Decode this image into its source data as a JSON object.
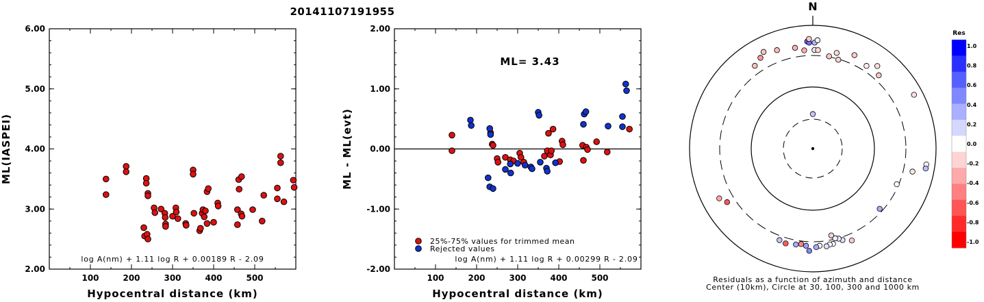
{
  "title": "20141107191955",
  "chart_data": [
    {
      "type": "scatter",
      "xlabel": "Hypocentral distance (km)",
      "ylabel": "ML(IASPEI)",
      "xlim": [
        0,
        600
      ],
      "ylim": [
        2.0,
        6.0
      ],
      "xticks": [
        "100",
        "200",
        "300",
        "400",
        "500"
      ],
      "yticks": [
        "2.00",
        "3.00",
        "4.00",
        "5.00",
        "6.00"
      ],
      "formula": "log A(nm) + 1.11 log R + 0.00189 R - 2.09",
      "series": [
        {
          "color": "#dd1111",
          "points": [
            [
              138,
              3.5
            ],
            [
              138,
              3.24
            ],
            [
              187,
              3.71
            ],
            [
              187,
              3.62
            ],
            [
              230,
              2.69
            ],
            [
              232,
              2.55
            ],
            [
              236,
              3.51
            ],
            [
              236,
              3.43
            ],
            [
              238,
              2.58
            ],
            [
              240,
              3.26
            ],
            [
              240,
              3.22
            ],
            [
              240,
              2.5
            ],
            [
              255,
              3.02
            ],
            [
              257,
              2.94
            ],
            [
              272,
              3.0
            ],
            [
              281,
              2.93
            ],
            [
              282,
              2.86
            ],
            [
              283,
              2.75
            ],
            [
              283,
              2.71
            ],
            [
              300,
              2.88
            ],
            [
              308,
              3.02
            ],
            [
              309,
              2.95
            ],
            [
              313,
              2.84
            ],
            [
              332,
              2.76
            ],
            [
              333,
              2.73
            ],
            [
              350,
              3.65
            ],
            [
              350,
              3.58
            ],
            [
              352,
              2.93
            ],
            [
              366,
              2.64
            ],
            [
              368,
              2.68
            ],
            [
              372,
              2.93
            ],
            [
              374,
              2.99
            ],
            [
              377,
              2.87
            ],
            [
              380,
              2.97
            ],
            [
              384,
              3.29
            ],
            [
              384,
              2.76
            ],
            [
              387,
              3.34
            ],
            [
              400,
              2.78
            ],
            [
              410,
              3.1
            ],
            [
              411,
              3.05
            ],
            [
              458,
              2.99
            ],
            [
              458,
              2.74
            ],
            [
              461,
              3.49
            ],
            [
              462,
              3.33
            ],
            [
              468,
              3.54
            ],
            [
              467,
              2.92
            ],
            [
              469,
              2.88
            ],
            [
              495,
              2.99
            ],
            [
              518,
              2.8
            ],
            [
              522,
              3.23
            ],
            [
              555,
              3.35
            ],
            [
              555,
              3.17
            ],
            [
              563,
              3.88
            ],
            [
              563,
              3.77
            ],
            [
              571,
              3.12
            ],
            [
              594,
              3.48
            ],
            [
              596,
              3.36
            ]
          ]
        }
      ]
    },
    {
      "type": "scatter",
      "xlabel": "Hypocentral distance (km)",
      "ylabel": "ML - ML(evt)",
      "xlim": [
        0,
        600
      ],
      "ylim": [
        -2.0,
        2.0
      ],
      "xticks": [
        "100",
        "200",
        "300",
        "400",
        "500"
      ],
      "yticks": [
        "-2.00",
        "-1.00",
        "0.00",
        "1.00",
        "2.00"
      ],
      "annotation": "ML= 3.43",
      "formula": "log A(nm) + 1.11 log R + 0.00299 R - 2.09",
      "reference_line": 0,
      "series": [
        {
          "name": "25%-75% values for trimmed mean",
          "color": "#dd1111",
          "points": [
            [
              140,
              0.23
            ],
            [
              140,
              -0.03
            ],
            [
              234,
              0.27
            ],
            [
              238,
              0.08
            ],
            [
              240,
              0.06
            ],
            [
              250,
              -0.16
            ],
            [
              252,
              -0.22
            ],
            [
              270,
              -0.14
            ],
            [
              282,
              -0.18
            ],
            [
              290,
              -0.2
            ],
            [
              305,
              -0.07
            ],
            [
              308,
              -0.14
            ],
            [
              315,
              -0.22
            ],
            [
              365,
              -0.12
            ],
            [
              372,
              -0.03
            ],
            [
              375,
              0.26
            ],
            [
              380,
              -0.1
            ],
            [
              382,
              -0.03
            ],
            [
              386,
              0.33
            ],
            [
              402,
              -0.21
            ],
            [
              408,
              0.13
            ],
            [
              410,
              0.07
            ],
            [
              458,
              0.06
            ],
            [
              460,
              -0.19
            ],
            [
              467,
              0.03
            ],
            [
              470,
              -0.01
            ],
            [
              492,
              0.12
            ],
            [
              518,
              -0.05
            ],
            [
              572,
              0.33
            ]
          ]
        },
        {
          "name": "Rejected values",
          "color": "#1133cc",
          "points": [
            [
              185,
              0.48
            ],
            [
              187,
              0.39
            ],
            [
              228,
              -0.48
            ],
            [
              232,
              0.34
            ],
            [
              232,
              -0.63
            ],
            [
              234,
              0.24
            ],
            [
              240,
              -0.66
            ],
            [
              270,
              -0.34
            ],
            [
              282,
              -0.25
            ],
            [
              283,
              -0.4
            ],
            [
              300,
              -0.24
            ],
            [
              318,
              -0.27
            ],
            [
              332,
              -0.3
            ],
            [
              335,
              -0.33
            ],
            [
              350,
              0.61
            ],
            [
              352,
              0.56
            ],
            [
              355,
              -0.22
            ],
            [
              370,
              -0.32
            ],
            [
              372,
              -0.37
            ],
            [
              392,
              -0.23
            ],
            [
              460,
              0.41
            ],
            [
              462,
              0.58
            ],
            [
              466,
              0.62
            ],
            [
              520,
              0.38
            ],
            [
              555,
              0.54
            ],
            [
              555,
              0.37
            ],
            [
              563,
              1.08
            ],
            [
              565,
              0.97
            ]
          ]
        }
      ]
    },
    {
      "type": "polar-scatter",
      "north_label": "N",
      "caption": "Residuals as a function of azimuth and distance",
      "caption2": "Center (10km), Circle at 30, 100, 300 and 1000 km",
      "colorbar_title": "Res",
      "colorbar_ticks": [
        "1.0",
        "0.8",
        "0.6",
        "0.4",
        "0.2",
        "0.0",
        "-0.2",
        "-0.4",
        "-0.6",
        "-0.8",
        "-1.0"
      ],
      "colorbar_colors": [
        "#0000ff",
        "#2a30ff",
        "#5560ff",
        "#8088ff",
        "#aab0ff",
        "#d4d8ff",
        "#ffffff",
        "#ffd4d4",
        "#ffaaaa",
        "#ff8080",
        "#ff5555",
        "#ff2a2a",
        "#ff0000"
      ],
      "points": [
        [
          0.06,
          0.28
        ],
        [
          1.0,
          0.8
        ],
        [
          0.99,
          0.86
        ],
        [
          1.0,
          0.8
        ],
        [
          2.5,
          0.88
        ],
        [
          3.0,
          0.8
        ],
        [
          10,
          0.76
        ],
        [
          14,
          0.8
        ],
        [
          16,
          0.75
        ],
        [
          24,
          0.83
        ],
        [
          33,
          0.8
        ],
        [
          38,
          0.85
        ],
        [
          42,
          0.8
        ],
        [
          62,
          0.93
        ],
        [
          98,
          0.93
        ],
        [
          100,
          0.93
        ],
        [
          103,
          0.83
        ],
        [
          113,
          0.74
        ],
        [
          132,
          0.73
        ],
        [
          157,
          0.81
        ],
        [
          162,
          0.78
        ],
        [
          164,
          0.76
        ],
        [
          166,
          0.75
        ],
        [
          168,
          0.72
        ],
        [
          168,
          0.79
        ],
        [
          170,
          0.79
        ],
        [
          172,
          0.8
        ],
        [
          176,
          0.79
        ],
        [
          178,
          0.8
        ],
        [
          182,
          0.83
        ],
        [
          184,
          0.79
        ],
        [
          187,
          0.78
        ],
        [
          190,
          0.79
        ],
        [
          196,
          0.8
        ],
        [
          200,
          0.79
        ],
        [
          238,
          0.82
        ],
        [
          242,
          0.86
        ],
        [
          325,
          0.82
        ],
        [
          330,
          0.85
        ],
        [
          333,
          0.88
        ],
        [
          340,
          0.85
        ],
        [
          350,
          0.83
        ],
        [
          355,
          0.8
        ],
        [
          357,
          0.87
        ],
        [
          358,
          0.86
        ],
        [
          358,
          0.89
        ]
      ]
    }
  ]
}
